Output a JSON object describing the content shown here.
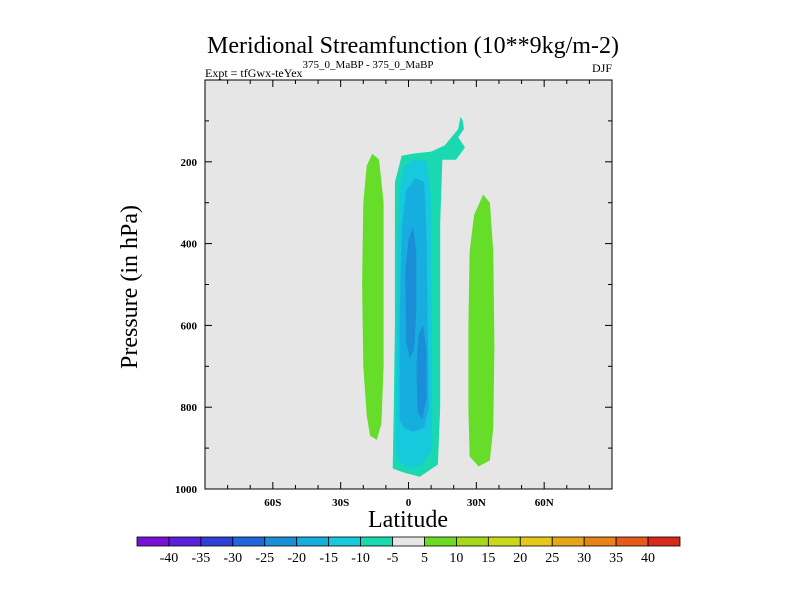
{
  "chart_data": {
    "type": "heatmap",
    "title": "Meridional Streamfunction (10**9kg/m-2)",
    "subtitle_left_main": "Expt = tfGwx-teYex",
    "subtitle_left_sup": "375_0_MaBP - 375_0_MaBP",
    "subtitle_right": "DJF",
    "xlabel": "Latitude",
    "ylabel": "Pressure (in hPa)",
    "xlim": [
      -90,
      90
    ],
    "ylim": [
      1000,
      0
    ],
    "x_ticks": [
      -60,
      -30,
      0,
      30,
      60
    ],
    "x_tick_labels": [
      "60S",
      "30S",
      "0",
      "30N",
      "60N"
    ],
    "y_ticks": [
      200,
      400,
      600,
      800,
      1000
    ],
    "y_tick_labels": [
      "200",
      "400",
      "600",
      "800",
      "1000"
    ],
    "background_color": "#e6e6e6",
    "colorbar": {
      "labels": [
        "-40",
        "-35",
        "-30",
        "-25",
        "-20",
        "-15",
        "-10",
        "-5",
        "5",
        "10",
        "15",
        "20",
        "25",
        "30",
        "35",
        "40"
      ],
      "colors": [
        "#7a12d6",
        "#5a1fd8",
        "#2f3fd8",
        "#1f66d8",
        "#1a8fd8",
        "#16aede",
        "#16c9dc",
        "#1ad9b0",
        "#e6e6e6",
        "#6ddb26",
        "#a6d81a",
        "#c9d81a",
        "#e6c81a",
        "#e6a61a",
        "#e6841a",
        "#e65a1a",
        "#d82a1a"
      ]
    },
    "regions": [
      {
        "name": "positive-cell-west",
        "level": "5 to 10",
        "color": "#66dd28",
        "points": [
          [
            -18.5,
            820
          ],
          [
            -20,
            700
          ],
          [
            -20.5,
            500
          ],
          [
            -20,
            300
          ],
          [
            -18.5,
            210
          ],
          [
            -16,
            180
          ],
          [
            -13,
            195
          ],
          [
            -11,
            300
          ],
          [
            -11,
            500
          ],
          [
            -11,
            700
          ],
          [
            -12,
            840
          ],
          [
            -14,
            880
          ],
          [
            -17,
            870
          ]
        ]
      },
      {
        "name": "negative-cell-outer",
        "level": "-10 to -5",
        "color": "#1ad9b0",
        "points": [
          [
            -7,
            950
          ],
          [
            -6.5,
            800
          ],
          [
            -6,
            600
          ],
          [
            -6,
            400
          ],
          [
            -6,
            250
          ],
          [
            -3,
            185
          ],
          [
            2,
            180
          ],
          [
            10,
            175
          ],
          [
            16,
            160
          ],
          [
            22,
            120
          ],
          [
            23,
            90
          ],
          [
            24,
            100
          ],
          [
            24.5,
            120
          ],
          [
            22,
            140
          ],
          [
            25,
            165
          ],
          [
            21,
            195
          ],
          [
            15,
            195
          ],
          [
            14,
            350
          ],
          [
            14,
            600
          ],
          [
            14,
            800
          ],
          [
            13,
            940
          ],
          [
            5,
            970
          ],
          [
            -2,
            960
          ]
        ]
      },
      {
        "name": "negative-cell-level2",
        "level": "-15 to -10",
        "color": "#16c9dc",
        "points": [
          [
            -5.5,
            920
          ],
          [
            -5.5,
            700
          ],
          [
            -5,
            450
          ],
          [
            -4,
            260
          ],
          [
            -2,
            210
          ],
          [
            3,
            195
          ],
          [
            8,
            200
          ],
          [
            10,
            280
          ],
          [
            10,
            450
          ],
          [
            10.5,
            700
          ],
          [
            10.5,
            900
          ],
          [
            6,
            940
          ],
          [
            1,
            950
          ],
          [
            -3,
            940
          ]
        ]
      },
      {
        "name": "negative-cell-level3",
        "level": "-20 to -15",
        "color": "#16aede",
        "points": [
          [
            -4,
            830
          ],
          [
            -4,
            600
          ],
          [
            -3,
            360
          ],
          [
            -1,
            270
          ],
          [
            3,
            240
          ],
          [
            7,
            250
          ],
          [
            8,
            380
          ],
          [
            8.5,
            600
          ],
          [
            9,
            800
          ],
          [
            7,
            850
          ],
          [
            2,
            860
          ],
          [
            -2,
            850
          ]
        ]
      },
      {
        "name": "negative-cell-core-a",
        "level": "-25 to -20",
        "color": "#1a8fd8",
        "points": [
          [
            -1,
            640
          ],
          [
            -1.5,
            470
          ],
          [
            0,
            390
          ],
          [
            2,
            360
          ],
          [
            3.5,
            420
          ],
          [
            3.5,
            560
          ],
          [
            2.5,
            660
          ],
          [
            0.5,
            680
          ]
        ]
      },
      {
        "name": "negative-cell-core-b",
        "level": "-25 to -20",
        "color": "#1a8fd8",
        "points": [
          [
            4,
            810
          ],
          [
            3.5,
            700
          ],
          [
            4.5,
            620
          ],
          [
            6.5,
            600
          ],
          [
            8,
            660
          ],
          [
            8,
            780
          ],
          [
            6,
            830
          ]
        ]
      },
      {
        "name": "positive-cell-east",
        "level": "5 to 10",
        "color": "#66dd28",
        "points": [
          [
            27,
            920
          ],
          [
            26.5,
            800
          ],
          [
            26.5,
            600
          ],
          [
            27,
            420
          ],
          [
            29,
            330
          ],
          [
            33,
            280
          ],
          [
            36,
            300
          ],
          [
            37.5,
            420
          ],
          [
            38,
            650
          ],
          [
            37.5,
            850
          ],
          [
            36,
            930
          ],
          [
            31,
            945
          ]
        ]
      }
    ]
  }
}
